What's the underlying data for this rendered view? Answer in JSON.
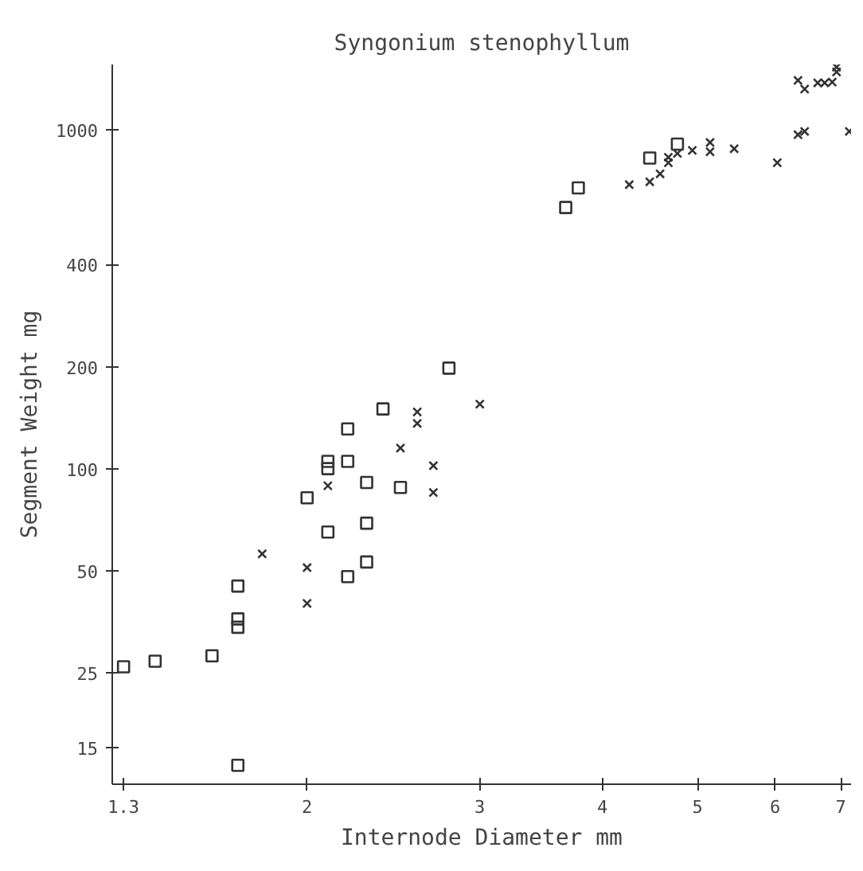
{
  "chart_data": {
    "type": "scatter",
    "title": "Syngonium stenophyllum",
    "xlabel": "Internode Diameter mm",
    "ylabel": "Segment Weight mg",
    "log": "xy",
    "grid": false,
    "xlim": [
      1.266,
      7.17
    ],
    "ylim": [
      11.7,
      1560
    ],
    "xticks": [
      1.3,
      2,
      3,
      4,
      5,
      6,
      7
    ],
    "yticks": [
      15,
      25,
      50,
      100,
      200,
      400,
      1000
    ],
    "series": [
      {
        "color": "#333333",
        "marker": "square",
        "x": [
          1.3,
          1.4,
          1.6,
          1.7,
          1.7,
          1.7,
          1.7,
          2.2,
          2.3,
          2.1,
          2.3,
          2.0,
          2.1,
          2.1,
          2.2,
          2.2,
          2.3,
          2.39,
          2.49,
          2.79,
          3.67,
          3.78,
          4.47,
          4.77
        ],
        "values": [
          26,
          27,
          28,
          45,
          36,
          34,
          13.3,
          48,
          53,
          65,
          69,
          82,
          100,
          105,
          105,
          131,
          91,
          150,
          88,
          198,
          590,
          674,
          826,
          908
        ]
      },
      {
        "color": "#333333",
        "marker": "cross",
        "x": [
          1.8,
          2.0,
          2.0,
          2.1,
          2.49,
          2.59,
          2.59,
          2.69,
          2.69,
          3.0,
          4.26,
          4.47,
          4.58,
          4.67,
          4.67,
          4.77,
          4.94,
          5.15,
          5.15,
          5.45,
          6.03,
          6.33,
          6.43,
          7.14,
          6.33,
          6.43,
          6.63,
          6.74,
          6.86,
          6.93,
          6.93
        ],
        "values": [
          56,
          51,
          40,
          89,
          115,
          147,
          136,
          102,
          85,
          155,
          689,
          703,
          742,
          800,
          830,
          852,
          870,
          918,
          862,
          880,
          800,
          968,
          990,
          990,
          1400,
          1320,
          1377,
          1377,
          1384,
          1483,
          1532
        ]
      }
    ]
  }
}
